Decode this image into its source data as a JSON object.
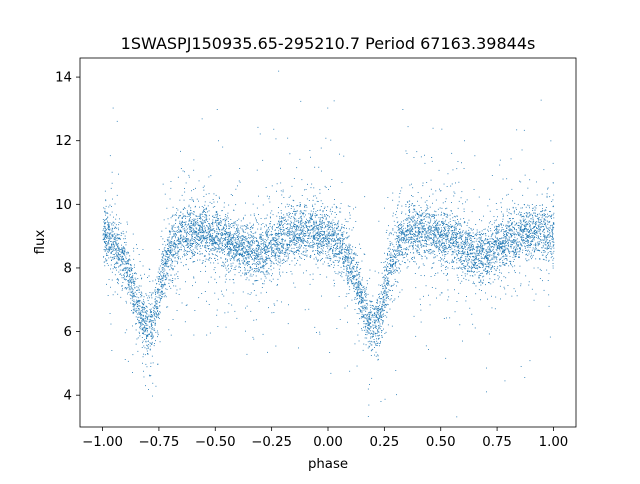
{
  "chart_data": {
    "type": "scatter",
    "title": "1SWASPJ150935.65-295210.7 Period 67163.39844s",
    "xlabel": "phase",
    "ylabel": "flux",
    "xlim": [
      -1.1,
      1.1
    ],
    "ylim": [
      3.0,
      14.6
    ],
    "x_ticks": [
      -1.0,
      -0.75,
      -0.5,
      -0.25,
      0.0,
      0.25,
      0.5,
      0.75,
      1.0
    ],
    "x_tick_labels": [
      "−1.00",
      "−0.75",
      "−0.50",
      "−0.25",
      "0.00",
      "0.25",
      "0.50",
      "0.75",
      "1.00"
    ],
    "y_ticks": [
      4,
      6,
      8,
      10,
      12,
      14
    ],
    "y_tick_labels": [
      "4",
      "6",
      "8",
      "10",
      "12",
      "14"
    ],
    "grid": false,
    "legend": "none",
    "point_color": "#1f77b4",
    "x_range": [
      -1.0,
      1.0
    ],
    "period_in_phase": 1.0,
    "light_curve": {
      "phase": [
        0.0,
        0.05,
        0.1,
        0.14,
        0.17,
        0.2,
        0.23,
        0.27,
        0.32,
        0.38,
        0.45,
        0.5,
        0.55,
        0.6,
        0.65,
        0.68,
        0.72,
        0.77,
        0.83,
        0.9,
        0.95,
        1.0
      ],
      "flux": [
        9.0,
        8.8,
        8.1,
        7.2,
        6.5,
        6.1,
        6.6,
        8.0,
        8.9,
        9.2,
        9.1,
        9.0,
        8.85,
        8.65,
        8.5,
        8.45,
        8.55,
        8.8,
        9.05,
        9.15,
        9.1,
        9.0
      ]
    }
  }
}
